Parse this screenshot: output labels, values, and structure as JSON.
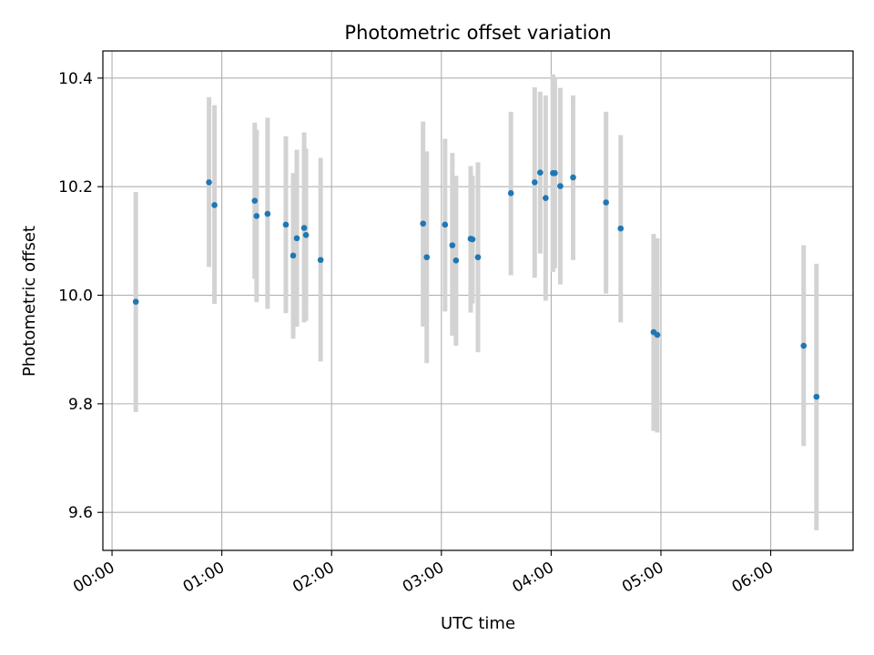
{
  "chart_data": {
    "type": "scatter",
    "title": "Photometric offset variation",
    "xlabel": "UTC time",
    "ylabel": "Photometric offset",
    "x_unit": "UTC",
    "xlim": [
      "-00:05",
      "06:45"
    ],
    "ylim": [
      9.53,
      10.45
    ],
    "xticks": [
      "00:00",
      "01:00",
      "02:00",
      "03:00",
      "04:00",
      "05:00",
      "06:00"
    ],
    "yticks": [
      9.6,
      9.8,
      10.0,
      10.2,
      10.4
    ],
    "grid": true,
    "errorbar_color": "#d3d3d3",
    "point_color": "#1f77b4",
    "points": [
      {
        "t": "00:13",
        "y": 9.988,
        "lo": 9.785,
        "hi": 10.19
      },
      {
        "t": "00:53",
        "y": 10.208,
        "lo": 10.052,
        "hi": 10.365
      },
      {
        "t": "00:56",
        "y": 10.166,
        "lo": 9.984,
        "hi": 10.35
      },
      {
        "t": "01:18",
        "y": 10.174,
        "lo": 10.03,
        "hi": 10.318
      },
      {
        "t": "01:19",
        "y": 10.146,
        "lo": 9.987,
        "hi": 10.305
      },
      {
        "t": "01:25",
        "y": 10.15,
        "lo": 9.975,
        "hi": 10.327
      },
      {
        "t": "01:35",
        "y": 10.13,
        "lo": 9.967,
        "hi": 10.293
      },
      {
        "t": "01:39",
        "y": 10.073,
        "lo": 9.92,
        "hi": 10.225
      },
      {
        "t": "01:41",
        "y": 10.105,
        "lo": 9.942,
        "hi": 10.268
      },
      {
        "t": "01:45",
        "y": 10.124,
        "lo": 9.95,
        "hi": 10.3
      },
      {
        "t": "01:46",
        "y": 10.111,
        "lo": 9.953,
        "hi": 10.27
      },
      {
        "t": "01:54",
        "y": 10.065,
        "lo": 9.878,
        "hi": 10.253
      },
      {
        "t": "02:50",
        "y": 10.132,
        "lo": 9.942,
        "hi": 10.32
      },
      {
        "t": "02:52",
        "y": 10.07,
        "lo": 9.875,
        "hi": 10.265
      },
      {
        "t": "03:02",
        "y": 10.13,
        "lo": 9.97,
        "hi": 10.288
      },
      {
        "t": "03:06",
        "y": 10.092,
        "lo": 9.925,
        "hi": 10.262
      },
      {
        "t": "03:08",
        "y": 10.064,
        "lo": 9.907,
        "hi": 10.22
      },
      {
        "t": "03:16",
        "y": 10.104,
        "lo": 9.968,
        "hi": 10.238
      },
      {
        "t": "03:17",
        "y": 10.103,
        "lo": 9.985,
        "hi": 10.22
      },
      {
        "t": "03:20",
        "y": 10.07,
        "lo": 9.895,
        "hi": 10.245
      },
      {
        "t": "03:38",
        "y": 10.188,
        "lo": 10.037,
        "hi": 10.338
      },
      {
        "t": "03:51",
        "y": 10.208,
        "lo": 10.032,
        "hi": 10.383
      },
      {
        "t": "03:54",
        "y": 10.226,
        "lo": 10.077,
        "hi": 10.375
      },
      {
        "t": "03:57",
        "y": 10.179,
        "lo": 9.99,
        "hi": 10.368
      },
      {
        "t": "04:01",
        "y": 10.225,
        "lo": 10.043,
        "hi": 10.407
      },
      {
        "t": "04:02",
        "y": 10.225,
        "lo": 10.05,
        "hi": 10.4
      },
      {
        "t": "04:05",
        "y": 10.201,
        "lo": 10.02,
        "hi": 10.382
      },
      {
        "t": "04:12",
        "y": 10.217,
        "lo": 10.065,
        "hi": 10.368
      },
      {
        "t": "04:30",
        "y": 10.171,
        "lo": 10.003,
        "hi": 10.338
      },
      {
        "t": "04:38",
        "y": 10.123,
        "lo": 9.95,
        "hi": 10.295
      },
      {
        "t": "04:56",
        "y": 9.932,
        "lo": 9.75,
        "hi": 10.113
      },
      {
        "t": "04:58",
        "y": 9.927,
        "lo": 9.747,
        "hi": 10.105
      },
      {
        "t": "06:18",
        "y": 9.907,
        "lo": 9.722,
        "hi": 10.092
      },
      {
        "t": "06:25",
        "y": 9.813,
        "lo": 9.567,
        "hi": 10.058
      }
    ]
  }
}
